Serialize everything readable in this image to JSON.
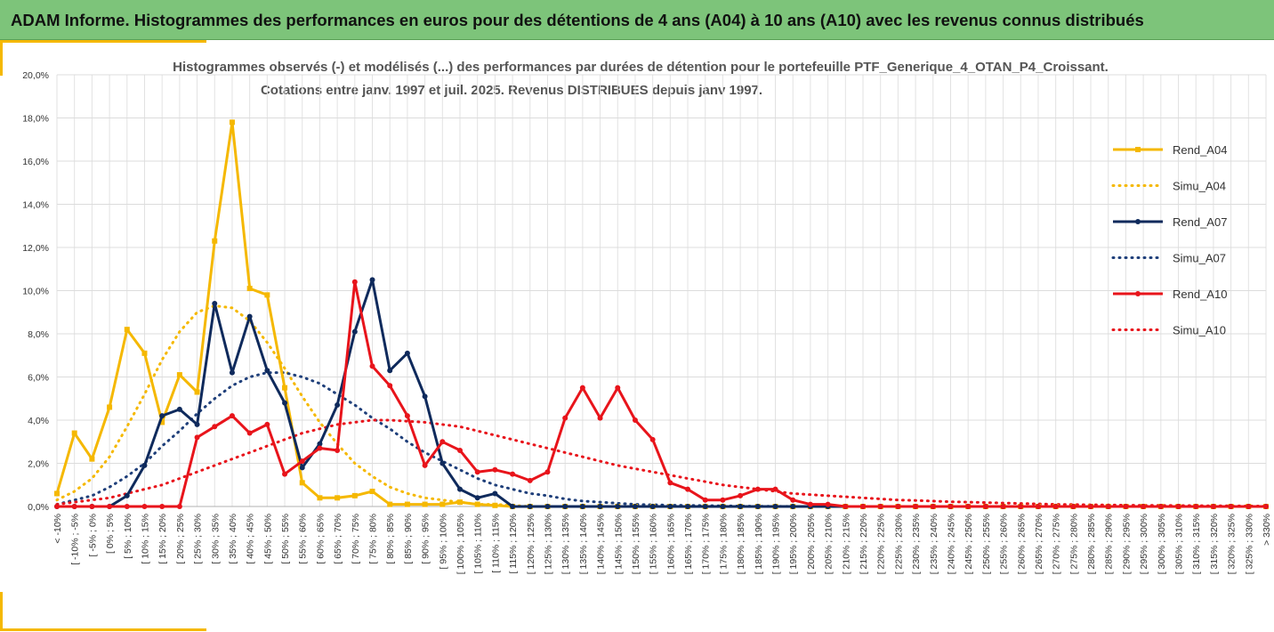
{
  "banner": {
    "title": "ADAM Informe. Histogrammes des performances en euros pour des détentions de 4 ans (A04) à 10 ans (A10) avec les revenus connus distribués"
  },
  "chart_data": {
    "type": "line",
    "title": "Histogrammes observés (-) et modélisés (...) des performances par durées de détention pour  le portefeuille PTF_Generique_4_OTAN_P4_Croissant.",
    "subtitle": "Cotations entre janv. 1997 et juil. 2025. Revenus DISTRIBUES depuis janv 1997.",
    "xlabel": "",
    "ylabel": "",
    "ylim": [
      0,
      20
    ],
    "y_ticks": [
      "0,0%",
      "2,0%",
      "4,0%",
      "6,0%",
      "8,0%",
      "10,0%",
      "12,0%",
      "14,0%",
      "16,0%",
      "18,0%",
      "20,0%"
    ],
    "grid": true,
    "legend_position": "right",
    "categories": [
      "< -10%",
      "[ -10% ; -5%",
      "[ -5% ; 0%",
      "[ 0% ; 5%",
      "[ 5% ; 10%",
      "[ 10% ; 15%",
      "[ 15% ; 20%",
      "[ 20% ; 25%",
      "[ 25% ; 30%",
      "[ 30% ; 35%",
      "[ 35% ; 40%",
      "[ 40% ; 45%",
      "[ 45% ; 50%",
      "[ 50% ; 55%",
      "[ 55% ; 60%",
      "[ 60% ; 65%",
      "[ 65% ; 70%",
      "[ 70% ; 75%",
      "[ 75% ; 80%",
      "[ 80% ; 85%",
      "[ 85% ; 90%",
      "[ 90% ; 95%",
      "[ 95% ; 100%",
      "[ 100% ; 105%",
      "[ 105% ; 110%",
      "[ 110% ; 115%",
      "[ 115% ; 120%",
      "[ 120% ; 125%",
      "[ 125% ; 130%",
      "[ 130% ; 135%",
      "[ 135% ; 140%",
      "[ 140% ; 145%",
      "[ 145% ; 150%",
      "[ 150% ; 155%",
      "[ 155% ; 160%",
      "[ 160% ; 165%",
      "[ 165% ; 170%",
      "[ 170% ; 175%",
      "[ 175% ; 180%",
      "[ 180% ; 185%",
      "[ 185% ; 190%",
      "[ 190% ; 195%",
      "[ 195% ; 200%",
      "[ 200% ; 205%",
      "[ 205% ; 210%",
      "[ 210% ; 215%",
      "[ 215% ; 220%",
      "[ 220% ; 225%",
      "[ 225% ; 230%",
      "[ 230% ; 235%",
      "[ 235% ; 240%",
      "[ 240% ; 245%",
      "[ 245% ; 250%",
      "[ 250% ; 255%",
      "[ 255% ; 260%",
      "[ 260% ; 265%",
      "[ 265% ; 270%",
      "[ 270% ; 275%",
      "[ 275% ; 280%",
      "[ 280% ; 285%",
      "[ 285% ; 290%",
      "[ 290% ; 295%",
      "[ 295% ; 300%",
      "[ 300% ; 305%",
      "[ 305% ; 310%",
      "[ 310% ; 315%",
      "[ 315% ; 320%",
      "[ 320% ; 325%",
      "[ 325% ; 330%",
      "> 330%"
    ],
    "series": [
      {
        "name": "Rend_A04",
        "style": "solid",
        "marker": "square",
        "color": "#f5b800",
        "values": [
          0.6,
          3.4,
          2.2,
          4.6,
          8.2,
          7.1,
          3.9,
          6.1,
          5.3,
          12.3,
          17.8,
          10.1,
          9.8,
          5.5,
          1.1,
          0.4,
          0.4,
          0.5,
          0.7,
          0.1,
          0.1,
          0.1,
          0.1,
          0.2,
          0.1,
          0.05,
          0,
          0,
          0,
          0,
          0,
          0,
          0,
          0,
          0,
          0,
          0,
          0,
          0,
          0,
          0,
          0,
          0,
          0,
          0,
          0,
          0,
          0,
          0,
          0,
          0,
          0,
          0,
          0,
          0,
          0,
          0,
          0,
          0,
          0,
          0,
          0,
          0,
          0,
          0,
          0,
          0,
          0,
          0,
          0
        ]
      },
      {
        "name": "Simu_A04",
        "style": "dotted",
        "marker": "none",
        "color": "#f5b800",
        "values": [
          0.3,
          0.7,
          1.3,
          2.3,
          3.7,
          5.2,
          6.8,
          8.1,
          9.0,
          9.3,
          9.2,
          8.6,
          7.6,
          6.4,
          5.1,
          3.9,
          2.9,
          2.0,
          1.4,
          0.9,
          0.6,
          0.4,
          0.3,
          0.2,
          0.1,
          0.1,
          0.05,
          0,
          0,
          0,
          0,
          0,
          0,
          0,
          0,
          0,
          0,
          0,
          0,
          0,
          0,
          0,
          0,
          0,
          0,
          0,
          0,
          0,
          0,
          0,
          0,
          0,
          0,
          0,
          0,
          0,
          0,
          0,
          0,
          0,
          0,
          0,
          0,
          0,
          0,
          0,
          0,
          0,
          0,
          0
        ]
      },
      {
        "name": "Rend_A07",
        "style": "solid",
        "marker": "circle",
        "color": "#0f2a5c",
        "values": [
          0,
          0,
          0,
          0,
          0.5,
          1.9,
          4.2,
          4.5,
          3.8,
          9.4,
          6.2,
          8.8,
          6.3,
          4.8,
          1.8,
          2.9,
          4.7,
          8.1,
          10.5,
          6.3,
          7.1,
          5.1,
          2.0,
          0.8,
          0.4,
          0.6,
          0,
          0,
          0,
          0,
          0,
          0,
          0,
          0,
          0,
          0,
          0,
          0,
          0,
          0,
          0,
          0,
          0,
          0,
          0,
          0,
          0,
          0,
          0,
          0,
          0,
          0,
          0,
          0,
          0,
          0,
          0,
          0,
          0,
          0,
          0,
          0,
          0,
          0,
          0,
          0,
          0,
          0,
          0,
          0
        ]
      },
      {
        "name": "Simu_A07",
        "style": "dotted",
        "marker": "none",
        "color": "#1f3f7a",
        "values": [
          0.1,
          0.3,
          0.5,
          0.9,
          1.4,
          2.0,
          2.8,
          3.5,
          4.3,
          5.0,
          5.6,
          6.0,
          6.2,
          6.2,
          6.0,
          5.7,
          5.2,
          4.7,
          4.1,
          3.6,
          3.0,
          2.5,
          2.1,
          1.7,
          1.3,
          1.0,
          0.8,
          0.6,
          0.5,
          0.35,
          0.25,
          0.2,
          0.15,
          0.1,
          0.08,
          0.06,
          0.05,
          0.04,
          0.03,
          0.02,
          0.01,
          0.01,
          0,
          0,
          0,
          0,
          0,
          0,
          0,
          0,
          0,
          0,
          0,
          0,
          0,
          0,
          0,
          0,
          0,
          0,
          0,
          0,
          0,
          0,
          0,
          0,
          0,
          0,
          0,
          0
        ]
      },
      {
        "name": "Rend_A10",
        "style": "solid",
        "marker": "circle",
        "color": "#e8141b",
        "values": [
          0,
          0,
          0,
          0,
          0,
          0,
          0,
          0,
          3.2,
          3.7,
          4.2,
          3.4,
          3.8,
          1.5,
          2.1,
          2.7,
          2.6,
          10.4,
          6.5,
          5.6,
          4.2,
          1.9,
          3.0,
          2.6,
          1.6,
          1.7,
          1.5,
          1.2,
          1.6,
          4.1,
          5.5,
          4.1,
          5.5,
          4.0,
          3.1,
          1.1,
          0.8,
          0.3,
          0.3,
          0.5,
          0.8,
          0.8,
          0.3,
          0.1,
          0.1,
          0,
          0,
          0,
          0,
          0,
          0,
          0,
          0,
          0,
          0,
          0,
          0,
          0,
          0,
          0,
          0,
          0,
          0,
          0,
          0,
          0,
          0,
          0,
          0,
          0
        ]
      },
      {
        "name": "Simu_A10",
        "style": "dotted",
        "marker": "none",
        "color": "#e8141b",
        "values": [
          0.1,
          0.2,
          0.3,
          0.4,
          0.6,
          0.8,
          1.0,
          1.3,
          1.6,
          1.9,
          2.2,
          2.5,
          2.8,
          3.1,
          3.4,
          3.6,
          3.8,
          3.9,
          4.0,
          4.0,
          3.95,
          3.9,
          3.8,
          3.7,
          3.5,
          3.3,
          3.1,
          2.9,
          2.7,
          2.5,
          2.3,
          2.1,
          1.9,
          1.75,
          1.6,
          1.45,
          1.3,
          1.15,
          1.0,
          0.9,
          0.8,
          0.7,
          0.6,
          0.55,
          0.5,
          0.45,
          0.4,
          0.35,
          0.3,
          0.28,
          0.25,
          0.22,
          0.2,
          0.18,
          0.16,
          0.14,
          0.12,
          0.1,
          0.09,
          0.08,
          0.07,
          0.06,
          0.05,
          0.05,
          0.04,
          0.04,
          0.03,
          0.03,
          0.02,
          0.02
        ]
      }
    ]
  }
}
